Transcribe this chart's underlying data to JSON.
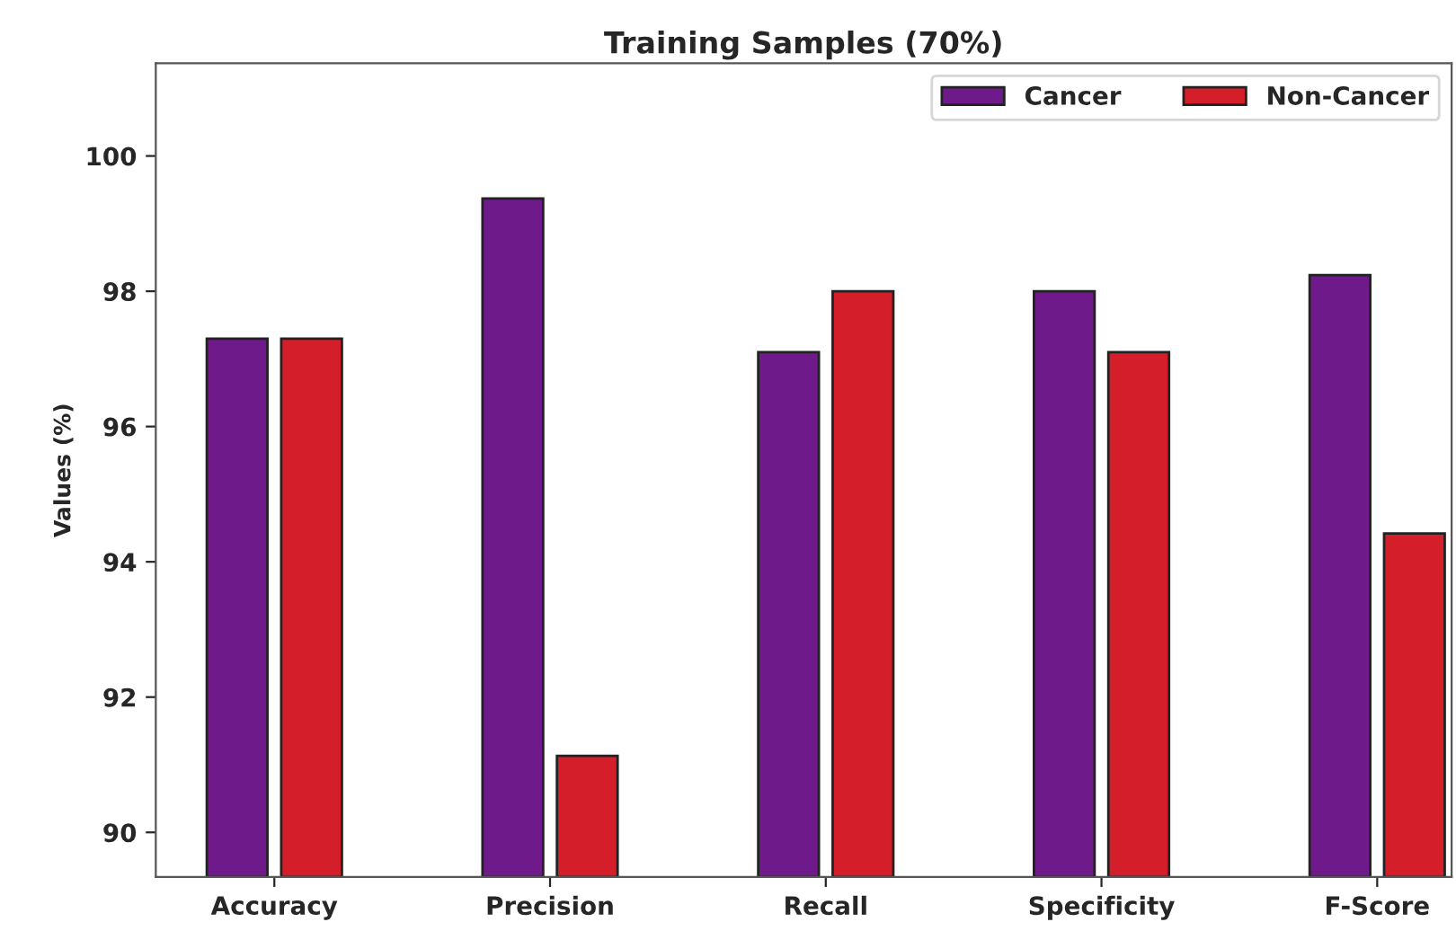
{
  "chart_data": {
    "type": "bar",
    "title": "Training Samples (70%)",
    "ylabel": "Values (%)",
    "categories": [
      "Accuracy",
      "Precision",
      "Recall",
      "Specificity",
      "F-Score"
    ],
    "series": [
      {
        "name": "Cancer",
        "color": "#6f1a8a",
        "values": [
          97.3,
          99.37,
          97.1,
          98.0,
          98.24
        ]
      },
      {
        "name": "Non-Cancer",
        "color": "#d41f2a",
        "values": [
          97.3,
          91.13,
          98.0,
          97.1,
          94.42
        ]
      }
    ],
    "ylim": [
      89.34,
      101.37
    ],
    "yticks": [
      90,
      92,
      94,
      96,
      98,
      100
    ],
    "grid": false,
    "legend": "top right"
  }
}
